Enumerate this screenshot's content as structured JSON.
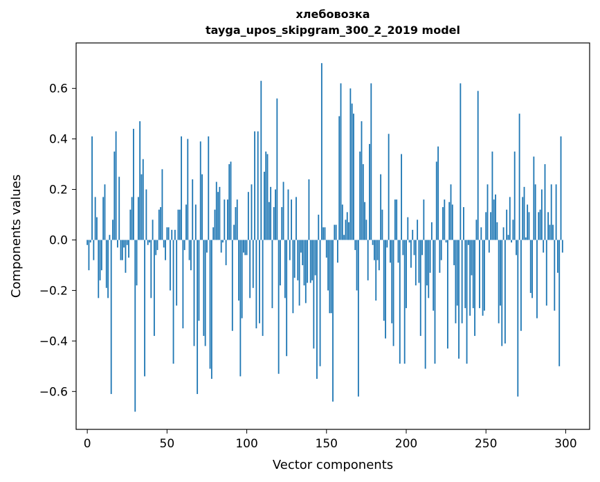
{
  "chart_data": {
    "type": "bar",
    "title": "хлебовозка",
    "subtitle": "tayga_upos_skipgram_300_2_2019 model",
    "xlabel": "Vector components",
    "ylabel": "Components values",
    "xlim": [
      -7,
      315
    ],
    "ylim": [
      -0.75,
      0.78
    ],
    "xticks": [
      0,
      50,
      100,
      150,
      200,
      250,
      300
    ],
    "yticks": [
      -0.6,
      -0.4,
      -0.2,
      0.0,
      0.2,
      0.4,
      0.6
    ],
    "xtick_labels": [
      "0",
      "50",
      "100",
      "150",
      "200",
      "250",
      "300"
    ],
    "ytick_labels": [
      "−0.6",
      "−0.4",
      "−0.2",
      "0.0",
      "0.2",
      "0.4",
      "0.6"
    ],
    "bar_color": "#1f77b4",
    "values": [
      -0.02,
      -0.12,
      -0.01,
      0.41,
      -0.08,
      0.17,
      0.09,
      -0.23,
      -0.16,
      -0.12,
      0.17,
      0.22,
      -0.19,
      -0.23,
      0.02,
      -0.61,
      0.08,
      0.35,
      0.43,
      -0.03,
      0.25,
      -0.08,
      -0.08,
      -0.03,
      -0.13,
      -0.02,
      -0.07,
      0.12,
      0.17,
      0.44,
      -0.68,
      -0.18,
      0.17,
      0.47,
      0.26,
      0.32,
      -0.54,
      0.2,
      -0.02,
      -0.01,
      -0.23,
      0.08,
      -0.38,
      -0.06,
      -0.04,
      0.12,
      0.13,
      0.28,
      -0.03,
      -0.08,
      0.05,
      0.05,
      -0.2,
      0.04,
      -0.49,
      0.04,
      -0.26,
      0.12,
      0.12,
      0.41,
      -0.35,
      -0.04,
      0.14,
      0.4,
      -0.08,
      -0.12,
      0.24,
      -0.42,
      0.14,
      -0.61,
      -0.32,
      0.39,
      0.26,
      -0.38,
      -0.42,
      -0.05,
      0.41,
      -0.51,
      -0.55,
      0.05,
      0.12,
      0.23,
      0.19,
      0.21,
      -0.05,
      -0.01,
      0.16,
      -0.1,
      0.16,
      0.3,
      0.31,
      -0.36,
      0.06,
      0.13,
      0.16,
      -0.24,
      -0.54,
      -0.31,
      -0.05,
      -0.06,
      -0.06,
      0.19,
      -0.23,
      0.22,
      -0.19,
      0.43,
      -0.35,
      0.43,
      -0.33,
      0.63,
      -0.38,
      0.27,
      0.35,
      0.34,
      0.15,
      0.21,
      -0.27,
      0.13,
      0.2,
      0.56,
      -0.53,
      -0.18,
      0.13,
      0.23,
      -0.23,
      -0.46,
      0.2,
      -0.08,
      0.16,
      -0.29,
      -0.15,
      0.17,
      -0.16,
      -0.26,
      -0.05,
      -0.1,
      -0.18,
      -0.25,
      -0.17,
      0.24,
      -0.17,
      -0.16,
      -0.43,
      -0.14,
      -0.55,
      0.1,
      -0.5,
      0.7,
      0.05,
      0.05,
      -0.07,
      -0.2,
      -0.29,
      -0.29,
      -0.64,
      0.06,
      0.06,
      -0.09,
      0.49,
      0.62,
      0.14,
      0.02,
      0.08,
      0.11,
      0.07,
      0.6,
      0.54,
      0.5,
      -0.04,
      -0.2,
      -0.62,
      0.35,
      0.47,
      0.3,
      0.15,
      0.08,
      -0.16,
      0.38,
      0.62,
      -0.02,
      -0.08,
      -0.24,
      -0.08,
      -0.12,
      0.26,
      0.12,
      -0.32,
      -0.39,
      -0.03,
      0.42,
      -0.09,
      -0.33,
      -0.42,
      0.16,
      0.16,
      -0.09,
      -0.49,
      0.34,
      -0.06,
      -0.49,
      -0.27,
      0.09,
      -0.01,
      -0.11,
      0.04,
      -0.06,
      -0.18,
      0.08,
      -0.17,
      -0.38,
      -0.06,
      0.16,
      -0.51,
      -0.18,
      -0.23,
      -0.13,
      0.07,
      -0.28,
      -0.49,
      0.31,
      0.37,
      -0.13,
      -0.08,
      0.13,
      0.16,
      -0.01,
      -0.43,
      0.15,
      0.22,
      0.14,
      -0.1,
      -0.33,
      -0.26,
      -0.47,
      0.62,
      -0.33,
      0.13,
      -0.27,
      -0.49,
      -0.02,
      -0.3,
      -0.14,
      -0.27,
      -0.38,
      0.08,
      0.59,
      -0.27,
      0.05,
      -0.3,
      -0.28,
      0.11,
      0.22,
      -0.05,
      0.11,
      0.35,
      0.16,
      0.18,
      0.07,
      -0.33,
      -0.26,
      -0.42,
      0.05,
      -0.41,
      0.12,
      0.02,
      0.17,
      -0.01,
      0.08,
      0.35,
      -0.06,
      -0.62,
      0.5,
      -0.36,
      0.17,
      0.21,
      0.01,
      0.14,
      0.11,
      -0.21,
      -0.23,
      0.33,
      0.22,
      -0.31,
      0.11,
      0.12,
      0.2,
      -0.05,
      0.3,
      -0.26,
      0.11,
      0.06,
      0.22,
      0.06,
      -0.28,
      0.22,
      -0.13,
      -0.5,
      0.41,
      -0.05
    ]
  }
}
